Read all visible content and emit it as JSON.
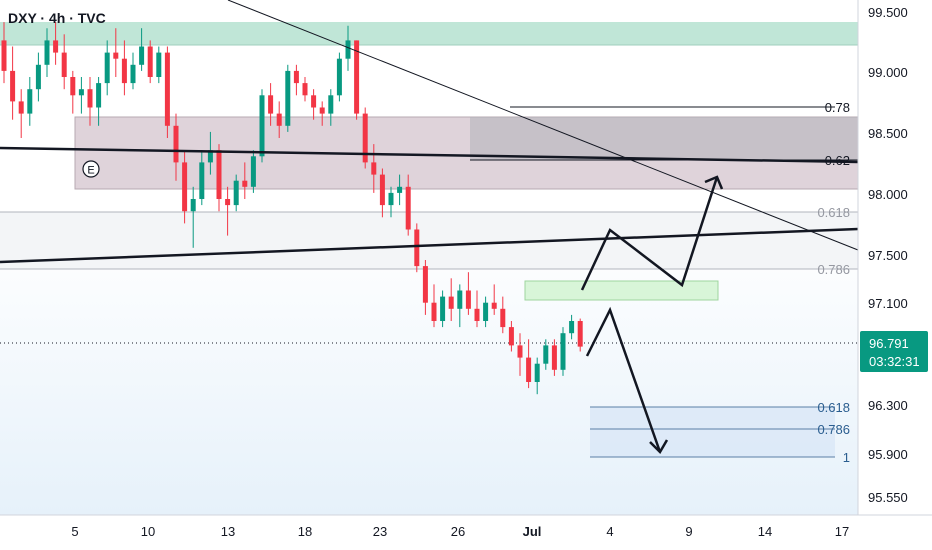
{
  "symbol": {
    "label": "DXY · 4h · TVC"
  },
  "price_axis": {
    "ticks": [
      "99.500",
      "99.000",
      "98.500",
      "98.000",
      "97.500",
      "97.100",
      "96.300",
      "95.900",
      "95.550"
    ],
    "last_price": "96.791",
    "countdown": "03:32:31",
    "last_price_color": "#089981"
  },
  "time_axis": {
    "ticks": [
      "5",
      "10",
      "13",
      "18",
      "23",
      "26",
      "Jul",
      "4",
      "9",
      "14",
      "17"
    ]
  },
  "colors": {
    "bull": "#089981",
    "bear": "#f23645",
    "supply_zone": "#b9e3d3",
    "range_box": "#d9cbd3",
    "green_target": "#d8f5d8",
    "blue_zone": "#dce9f7",
    "fib_text_blue": "#2a5d8f",
    "fib_text_gray": "#9598a1"
  },
  "fib_upper": {
    "labels": [
      "0.78",
      "0.62"
    ]
  },
  "fib_mid": {
    "labels": [
      "0.618",
      "0.786"
    ]
  },
  "fib_lower": {
    "labels": [
      "0.618",
      "0.786",
      "1"
    ]
  },
  "earnings_marker": {
    "label": "E",
    "icon": "earnings-icon"
  },
  "chart_data": {
    "type": "candlestick",
    "series": [
      {
        "name": "",
        "values": [
          [
            99.3,
            99.45,
            98.95,
            99.05
          ],
          [
            99.05,
            99.25,
            98.65,
            98.8
          ],
          [
            98.8,
            98.9,
            98.5,
            98.7
          ],
          [
            98.7,
            99.0,
            98.6,
            98.9
          ],
          [
            98.9,
            99.2,
            98.8,
            99.1
          ],
          [
            99.1,
            99.4,
            99.0,
            99.3
          ],
          [
            99.3,
            99.45,
            99.1,
            99.2
          ],
          [
            99.2,
            99.35,
            98.9,
            99.0
          ],
          [
            99.0,
            99.05,
            98.7,
            98.85
          ],
          [
            98.85,
            99.0,
            98.7,
            98.9
          ],
          [
            98.9,
            99.0,
            98.6,
            98.75
          ],
          [
            98.75,
            99.0,
            98.6,
            98.95
          ],
          [
            98.95,
            99.3,
            98.85,
            99.2
          ],
          [
            99.2,
            99.4,
            99.0,
            99.15
          ],
          [
            99.15,
            99.3,
            98.85,
            98.95
          ],
          [
            98.95,
            99.2,
            98.9,
            99.1
          ],
          [
            99.1,
            99.4,
            99.05,
            99.25
          ],
          [
            99.25,
            99.3,
            98.95,
            99.0
          ],
          [
            99.0,
            99.25,
            98.95,
            99.2
          ],
          [
            99.2,
            99.25,
            98.5,
            98.6
          ],
          [
            98.6,
            98.7,
            98.15,
            98.3
          ],
          [
            98.3,
            98.4,
            97.8,
            97.9
          ],
          [
            97.9,
            98.1,
            97.6,
            98.0
          ],
          [
            98.0,
            98.4,
            97.95,
            98.3
          ],
          [
            98.3,
            98.55,
            98.2,
            98.4
          ],
          [
            98.4,
            98.45,
            97.9,
            98.0
          ],
          [
            98.0,
            98.1,
            97.7,
            97.95
          ],
          [
            97.95,
            98.2,
            97.9,
            98.15
          ],
          [
            98.15,
            98.3,
            98.0,
            98.1
          ],
          [
            98.1,
            98.4,
            98.05,
            98.35
          ],
          [
            98.35,
            98.9,
            98.3,
            98.85
          ],
          [
            98.85,
            98.95,
            98.6,
            98.7
          ],
          [
            98.7,
            98.8,
            98.5,
            98.6
          ],
          [
            98.6,
            99.1,
            98.55,
            99.05
          ],
          [
            99.05,
            99.1,
            98.85,
            98.95
          ],
          [
            98.95,
            99.0,
            98.8,
            98.85
          ],
          [
            98.85,
            98.9,
            98.65,
            98.75
          ],
          [
            98.75,
            98.8,
            98.6,
            98.7
          ],
          [
            98.7,
            98.9,
            98.6,
            98.85
          ],
          [
            98.85,
            99.2,
            98.8,
            99.15
          ],
          [
            99.15,
            99.42,
            99.05,
            99.3
          ],
          [
            99.3,
            99.3,
            98.65,
            98.7
          ],
          [
            98.7,
            98.75,
            98.25,
            98.3
          ],
          [
            98.3,
            98.45,
            98.05,
            98.2
          ],
          [
            98.2,
            98.25,
            97.85,
            97.95
          ],
          [
            97.95,
            98.1,
            97.85,
            98.05
          ],
          [
            98.05,
            98.2,
            97.95,
            98.1
          ],
          [
            98.1,
            98.2,
            97.7,
            97.75
          ],
          [
            97.75,
            97.8,
            97.4,
            97.45
          ],
          [
            97.45,
            97.5,
            97.05,
            97.15
          ],
          [
            97.15,
            97.3,
            96.95,
            97.0
          ],
          [
            97.0,
            97.25,
            96.95,
            97.2
          ],
          [
            97.2,
            97.35,
            97.0,
            97.1
          ],
          [
            97.1,
            97.3,
            96.95,
            97.25
          ],
          [
            97.25,
            97.4,
            97.05,
            97.1
          ],
          [
            97.1,
            97.25,
            96.95,
            97.0
          ],
          [
            97.0,
            97.2,
            96.95,
            97.15
          ],
          [
            97.15,
            97.3,
            97.05,
            97.1
          ],
          [
            97.1,
            97.2,
            96.9,
            96.95
          ],
          [
            96.95,
            97.0,
            96.75,
            96.8
          ],
          [
            96.8,
            96.9,
            96.55,
            96.7
          ],
          [
            96.7,
            96.85,
            96.45,
            96.5
          ],
          [
            96.5,
            96.7,
            96.4,
            96.65
          ],
          [
            96.65,
            96.85,
            96.6,
            96.8
          ],
          [
            96.8,
            96.85,
            96.55,
            96.6
          ],
          [
            96.6,
            96.95,
            96.55,
            96.9
          ],
          [
            96.9,
            97.05,
            96.85,
            97.0
          ],
          [
            97.0,
            97.02,
            96.75,
            96.79
          ]
        ]
      }
    ],
    "ylim": [
      95.45,
      99.6
    ],
    "last": 96.791,
    "hlines": [
      {
        "name": "fib 0.618 (mid)",
        "value": 97.85
      },
      {
        "name": "fib 0.786 (mid)",
        "value": 97.38
      }
    ],
    "zones": [
      {
        "name": "supply zone",
        "from": 99.25,
        "to": 99.45
      },
      {
        "name": "range box",
        "from": 98.05,
        "to": 98.65
      },
      {
        "name": "green target box",
        "from": 97.1,
        "to": 97.25
      },
      {
        "name": "lower fib zone",
        "from": 95.95,
        "to": 96.3
      }
    ],
    "fib_upper_levels": [
      98.78,
      98.27
    ],
    "fib_lower_levels": [
      96.3,
      96.12,
      95.95
    ],
    "projection": "bullish path up to ~98.2 and bearish path down to ~95.95"
  }
}
